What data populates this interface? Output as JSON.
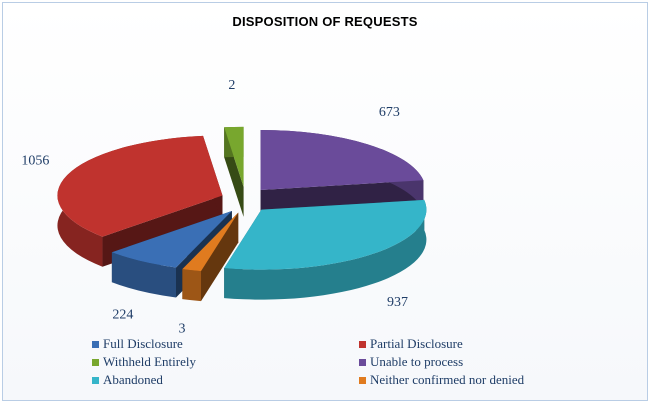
{
  "chart_data": {
    "type": "pie",
    "title": "DISPOSITION OF REQUESTS",
    "labels": [
      "Full Disclosure",
      "Partial Disclosure",
      "Withheld Entirely",
      "Unable to process",
      "Abandoned",
      "Neither confirmed nor denied"
    ],
    "values": [
      224,
      1056,
      2,
      673,
      937,
      3
    ],
    "colors": [
      "#3a6fb5",
      "#c0332e",
      "#78a72e",
      "#6a4b9a",
      "#35b5c9",
      "#e07b1f"
    ],
    "style": "3D exploded pie",
    "legend_position": "bottom"
  }
}
